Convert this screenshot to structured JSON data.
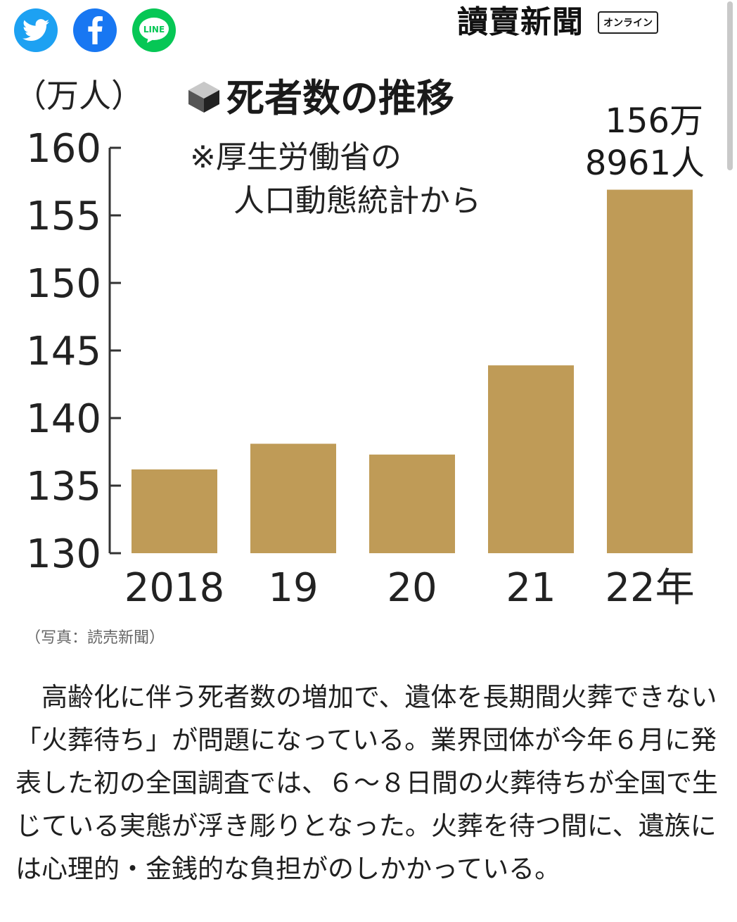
{
  "share": {
    "twitter_icon": "twitter-bird-icon",
    "facebook_icon": "facebook-f-icon",
    "line_label": "LINE",
    "colors": {
      "twitter": "#1da1f2",
      "facebook": "#1877f2",
      "line": "#06c755"
    }
  },
  "brand": {
    "name": "讀賣新聞",
    "badge": "オンライン"
  },
  "chart_data": {
    "type": "bar",
    "title": "死者数の推移",
    "subtitle_lines": [
      "※厚生労働省の",
      "人口動態統計から"
    ],
    "unit_label": "（万人）",
    "categories": [
      "2018",
      "19",
      "20",
      "21",
      "22年"
    ],
    "values": [
      136.2,
      138.1,
      137.3,
      143.9,
      156.9
    ],
    "yticks": [
      "160",
      "155",
      "150",
      "145",
      "140",
      "135",
      "130"
    ],
    "ylim": [
      130,
      160
    ],
    "annotation_lines": [
      "156万",
      "8961人"
    ],
    "bar_color": "#bf9b57",
    "grid": false
  },
  "caption": "（写真：読売新聞）",
  "article": {
    "text": "高齢化に伴う死者数の増加で、遺体を長期間火葬できない「火葬待ち」が問題になっている。業界団体が今年６月に発表した初の全国調査では、６～８日間の火葬待ちが全国で生じている実態が浮き彫りとなった。火葬を待つ間に、遺族には心理的・金銭的な負担がのしかかっている。"
  }
}
